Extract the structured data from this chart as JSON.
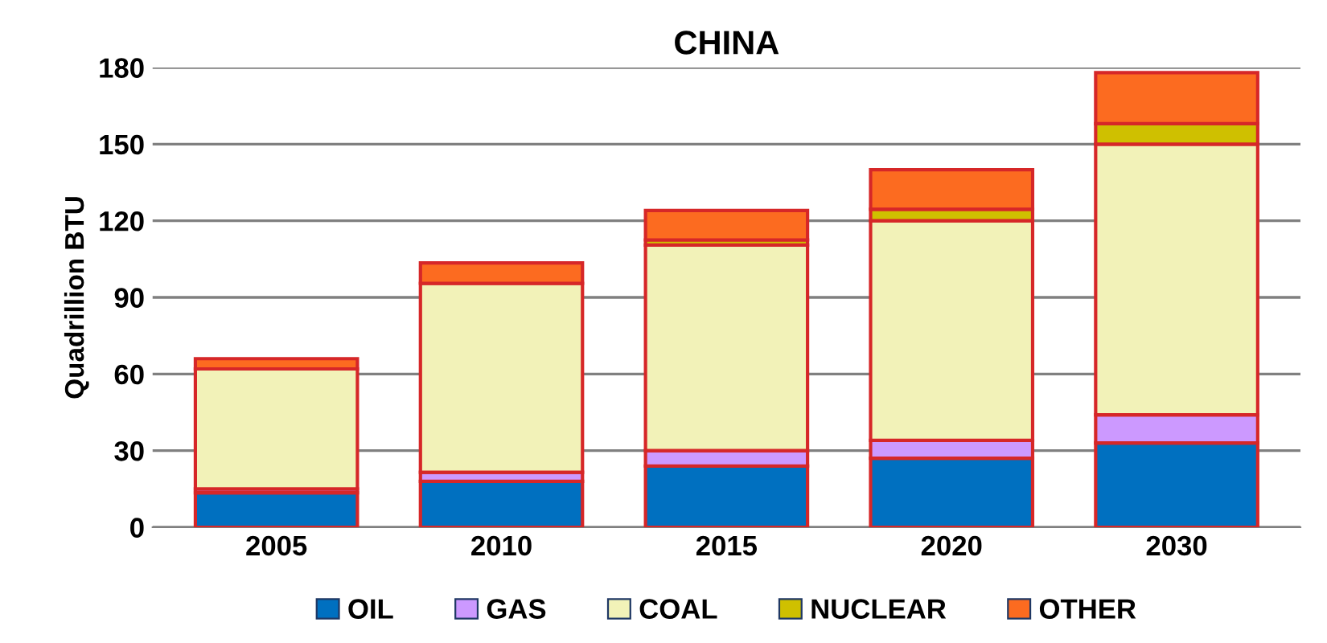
{
  "chart_data": {
    "type": "bar",
    "title": "CHINA",
    "ylabel": "Quadrillion BTU",
    "stacked": true,
    "categories": [
      "2005",
      "2010",
      "2015",
      "2020",
      "2030"
    ],
    "series": [
      {
        "name": "OIL",
        "color": "#0070c0",
        "values": [
          13.5,
          18,
          24,
          27,
          33
        ]
      },
      {
        "name": "GAS",
        "color": "#cc99ff",
        "values": [
          1.5,
          3.5,
          6,
          7,
          11
        ]
      },
      {
        "name": "COAL",
        "color": "#f2f2b8",
        "values": [
          47,
          74,
          80.5,
          86,
          106
        ]
      },
      {
        "name": "NUCLEAR",
        "color": "#cfc000",
        "values": [
          null,
          null,
          2,
          4.5,
          8
        ]
      },
      {
        "name": "OTHER",
        "color": "#fc6b20",
        "values": [
          4,
          8,
          11.5,
          15.5,
          20
        ]
      }
    ],
    "ylim": [
      0,
      180
    ],
    "yticks": [
      0,
      30,
      60,
      90,
      120,
      150,
      180
    ],
    "grid": "y",
    "legend": "bottom"
  }
}
